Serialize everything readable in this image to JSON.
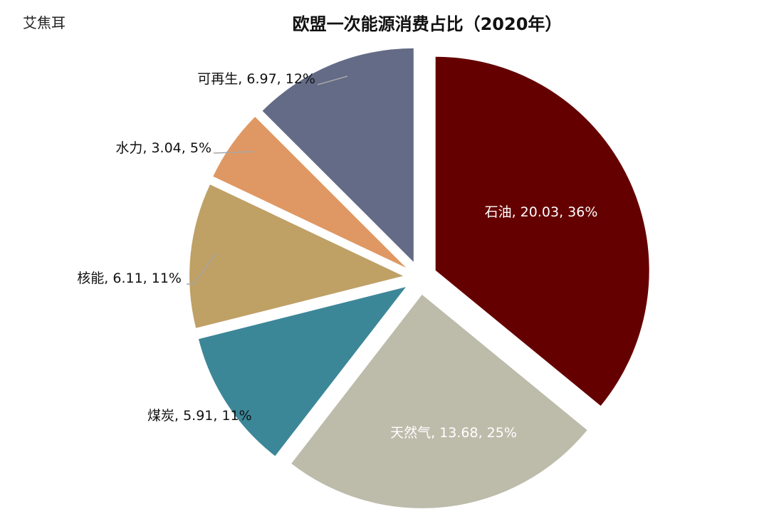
{
  "watermark": "艾焦耳",
  "chart_data": {
    "type": "pie",
    "title": "欧盟一次能源消费占比（2020年）",
    "slices": [
      {
        "name": "石油",
        "value": 20.03,
        "percent": "36%",
        "label": "石油, 20.03, 36%",
        "color": "#650000",
        "label_inside": true,
        "label_color": "#ffffff"
      },
      {
        "name": "天然气",
        "value": 13.68,
        "percent": "25%",
        "label": "天然气, 13.68, 25%",
        "color": "#bdbcab",
        "label_inside": true,
        "label_color": "#ffffff"
      },
      {
        "name": "煤炭",
        "value": 5.91,
        "percent": "11%",
        "label": "煤炭, 5.91, 11%",
        "color": "#3c8797",
        "label_inside": false,
        "label_color": "#111111"
      },
      {
        "name": "核能",
        "value": 6.11,
        "percent": "11%",
        "label": "核能, 6.11, 11%",
        "color": "#bfa065",
        "label_inside": false,
        "label_color": "#111111"
      },
      {
        "name": "水力",
        "value": 3.04,
        "percent": "5%",
        "label": "水力, 3.04, 5%",
        "color": "#df9863",
        "label_inside": false,
        "label_color": "#111111"
      },
      {
        "name": "可再生",
        "value": 6.97,
        "percent": "12%",
        "label": "可再生, 6.97, 12%",
        "color": "#636b86",
        "label_inside": false,
        "label_color": "#111111"
      }
    ]
  }
}
